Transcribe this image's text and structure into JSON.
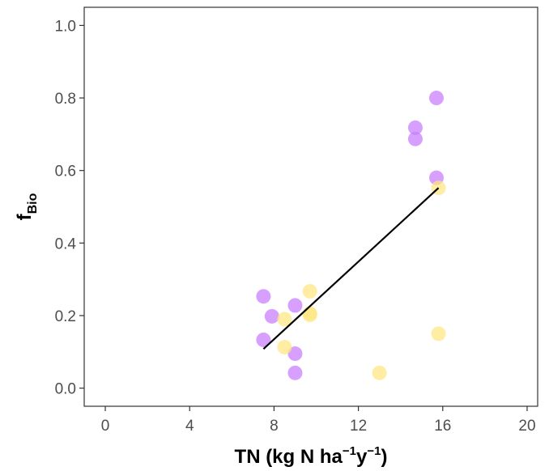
{
  "chart_data": {
    "type": "scatter",
    "title": "",
    "xlabel": {
      "parts": [
        {
          "text": "TN (kg N ha",
          "style": "normal"
        },
        {
          "text": "−1",
          "style": "sup"
        },
        {
          "text": "y",
          "style": "normal"
        },
        {
          "text": "−1",
          "style": "sup"
        },
        {
          "text": ")",
          "style": "normal"
        }
      ]
    },
    "ylabel": {
      "parts": [
        {
          "text": "f",
          "style": "normal"
        },
        {
          "text": "Bio",
          "style": "sub"
        }
      ]
    },
    "xlim": [
      -1,
      20.5
    ],
    "ylim": [
      -0.05,
      1.05
    ],
    "xticks": [
      0,
      4,
      8,
      12,
      16,
      20
    ],
    "yticks": [
      0.0,
      0.2,
      0.4,
      0.6,
      0.8,
      1.0
    ],
    "xtick_labels": [
      "0",
      "4",
      "8",
      "12",
      "16",
      "20"
    ],
    "ytick_labels": [
      "0.0",
      "0.2",
      "0.4",
      "0.6",
      "0.8",
      "1.0"
    ],
    "grid": false,
    "legend": "none",
    "series": [
      {
        "color": "#c77cff",
        "points": [
          {
            "x": 7.5,
            "y": 0.253
          },
          {
            "x": 7.5,
            "y": 0.133
          },
          {
            "x": 7.9,
            "y": 0.198
          },
          {
            "x": 9.0,
            "y": 0.228
          },
          {
            "x": 9.0,
            "y": 0.095
          },
          {
            "x": 9.0,
            "y": 0.042
          },
          {
            "x": 14.7,
            "y": 0.718
          },
          {
            "x": 14.7,
            "y": 0.687
          },
          {
            "x": 15.7,
            "y": 0.8
          },
          {
            "x": 15.7,
            "y": 0.58
          }
        ]
      },
      {
        "color": "#ffe680",
        "points": [
          {
            "x": 8.5,
            "y": 0.19
          },
          {
            "x": 8.5,
            "y": 0.113
          },
          {
            "x": 9.7,
            "y": 0.267
          },
          {
            "x": 9.7,
            "y": 0.206
          },
          {
            "x": 9.7,
            "y": 0.202
          },
          {
            "x": 13.0,
            "y": 0.042
          },
          {
            "x": 15.8,
            "y": 0.552
          },
          {
            "x": 15.8,
            "y": 0.15
          }
        ]
      }
    ],
    "trend_line": {
      "color": "#000000",
      "x": [
        7.5,
        15.8
      ],
      "y": [
        0.108,
        0.552
      ]
    }
  }
}
